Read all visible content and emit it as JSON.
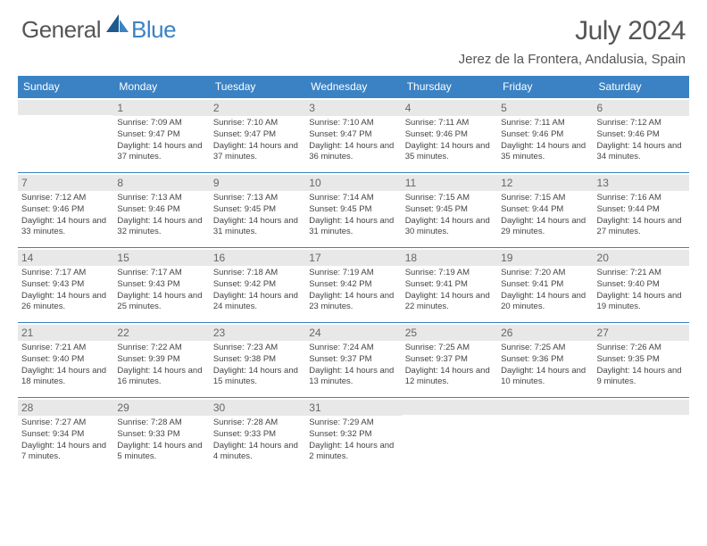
{
  "brand": {
    "part1": "General",
    "part2": "Blue",
    "color_gray": "#555555",
    "color_blue": "#3b82c4"
  },
  "title": "July 2024",
  "location": "Jerez de la Frontera, Andalusia, Spain",
  "weekdays": [
    "Sunday",
    "Monday",
    "Tuesday",
    "Wednesday",
    "Thursday",
    "Friday",
    "Saturday"
  ],
  "header_bg": "#3b82c4",
  "daynum_bg": "#e8e8e8",
  "grid": [
    [
      null,
      {
        "n": "1",
        "sr": "7:09 AM",
        "ss": "9:47 PM",
        "dl": "14 hours and 37 minutes."
      },
      {
        "n": "2",
        "sr": "7:10 AM",
        "ss": "9:47 PM",
        "dl": "14 hours and 37 minutes."
      },
      {
        "n": "3",
        "sr": "7:10 AM",
        "ss": "9:47 PM",
        "dl": "14 hours and 36 minutes."
      },
      {
        "n": "4",
        "sr": "7:11 AM",
        "ss": "9:46 PM",
        "dl": "14 hours and 35 minutes."
      },
      {
        "n": "5",
        "sr": "7:11 AM",
        "ss": "9:46 PM",
        "dl": "14 hours and 35 minutes."
      },
      {
        "n": "6",
        "sr": "7:12 AM",
        "ss": "9:46 PM",
        "dl": "14 hours and 34 minutes."
      }
    ],
    [
      {
        "n": "7",
        "sr": "7:12 AM",
        "ss": "9:46 PM",
        "dl": "14 hours and 33 minutes."
      },
      {
        "n": "8",
        "sr": "7:13 AM",
        "ss": "9:46 PM",
        "dl": "14 hours and 32 minutes."
      },
      {
        "n": "9",
        "sr": "7:13 AM",
        "ss": "9:45 PM",
        "dl": "14 hours and 31 minutes."
      },
      {
        "n": "10",
        "sr": "7:14 AM",
        "ss": "9:45 PM",
        "dl": "14 hours and 31 minutes."
      },
      {
        "n": "11",
        "sr": "7:15 AM",
        "ss": "9:45 PM",
        "dl": "14 hours and 30 minutes."
      },
      {
        "n": "12",
        "sr": "7:15 AM",
        "ss": "9:44 PM",
        "dl": "14 hours and 29 minutes."
      },
      {
        "n": "13",
        "sr": "7:16 AM",
        "ss": "9:44 PM",
        "dl": "14 hours and 27 minutes."
      }
    ],
    [
      {
        "n": "14",
        "sr": "7:17 AM",
        "ss": "9:43 PM",
        "dl": "14 hours and 26 minutes."
      },
      {
        "n": "15",
        "sr": "7:17 AM",
        "ss": "9:43 PM",
        "dl": "14 hours and 25 minutes."
      },
      {
        "n": "16",
        "sr": "7:18 AM",
        "ss": "9:42 PM",
        "dl": "14 hours and 24 minutes."
      },
      {
        "n": "17",
        "sr": "7:19 AM",
        "ss": "9:42 PM",
        "dl": "14 hours and 23 minutes."
      },
      {
        "n": "18",
        "sr": "7:19 AM",
        "ss": "9:41 PM",
        "dl": "14 hours and 22 minutes."
      },
      {
        "n": "19",
        "sr": "7:20 AM",
        "ss": "9:41 PM",
        "dl": "14 hours and 20 minutes."
      },
      {
        "n": "20",
        "sr": "7:21 AM",
        "ss": "9:40 PM",
        "dl": "14 hours and 19 minutes."
      }
    ],
    [
      {
        "n": "21",
        "sr": "7:21 AM",
        "ss": "9:40 PM",
        "dl": "14 hours and 18 minutes."
      },
      {
        "n": "22",
        "sr": "7:22 AM",
        "ss": "9:39 PM",
        "dl": "14 hours and 16 minutes."
      },
      {
        "n": "23",
        "sr": "7:23 AM",
        "ss": "9:38 PM",
        "dl": "14 hours and 15 minutes."
      },
      {
        "n": "24",
        "sr": "7:24 AM",
        "ss": "9:37 PM",
        "dl": "14 hours and 13 minutes."
      },
      {
        "n": "25",
        "sr": "7:25 AM",
        "ss": "9:37 PM",
        "dl": "14 hours and 12 minutes."
      },
      {
        "n": "26",
        "sr": "7:25 AM",
        "ss": "9:36 PM",
        "dl": "14 hours and 10 minutes."
      },
      {
        "n": "27",
        "sr": "7:26 AM",
        "ss": "9:35 PM",
        "dl": "14 hours and 9 minutes."
      }
    ],
    [
      {
        "n": "28",
        "sr": "7:27 AM",
        "ss": "9:34 PM",
        "dl": "14 hours and 7 minutes."
      },
      {
        "n": "29",
        "sr": "7:28 AM",
        "ss": "9:33 PM",
        "dl": "14 hours and 5 minutes."
      },
      {
        "n": "30",
        "sr": "7:28 AM",
        "ss": "9:33 PM",
        "dl": "14 hours and 4 minutes."
      },
      {
        "n": "31",
        "sr": "7:29 AM",
        "ss": "9:32 PM",
        "dl": "14 hours and 2 minutes."
      },
      null,
      null,
      null
    ]
  ],
  "labels": {
    "sunrise": "Sunrise:",
    "sunset": "Sunset:",
    "daylight": "Daylight:"
  }
}
